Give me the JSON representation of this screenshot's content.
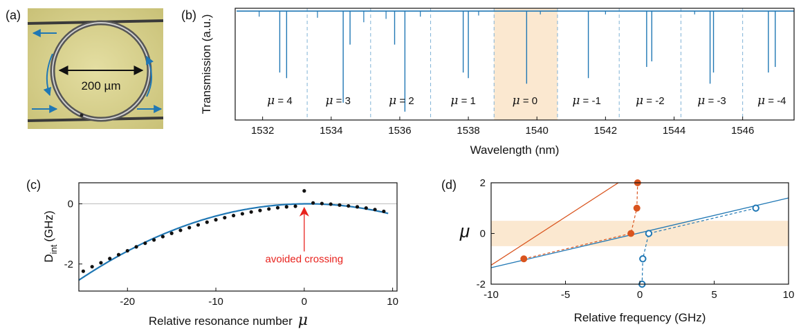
{
  "panel_labels": [
    "(a)",
    "(b)",
    "(c)",
    "(d)"
  ],
  "colors": {
    "blue": "#1f77b4",
    "red": "#d9541e",
    "band": "#fbe8d0",
    "annotation": "#e8221d",
    "black": "#111111",
    "photo_bg": "#d6cf8a"
  },
  "photo": {
    "dimension_label": "200 µm"
  },
  "chart_data": [
    {
      "panel": "(b)",
      "type": "line",
      "xlabel": "Wavelength (nm)",
      "ylabel": "Transmission (a.u.)",
      "xlim": [
        1531.2,
        1547.5
      ],
      "ylim": [
        0,
        1
      ],
      "xticks": [
        1532,
        1534,
        1536,
        1538,
        1540,
        1542,
        1544,
        1546
      ],
      "xtick_labels": [
        "1532",
        "1534",
        "1536",
        "1538",
        "1540",
        "1542",
        "1544",
        "1546"
      ],
      "highlight_band": [
        1538.75,
        1540.6
      ],
      "fsr_boundaries": [
        1533.3,
        1535.15,
        1536.9,
        1538.75,
        1540.6,
        1542.4,
        1544.2,
        1546.0
      ],
      "mode_labels": [
        "4",
        "3",
        "2",
        "1",
        "0",
        "-1",
        "-2",
        "-3",
        "-4"
      ],
      "mode_label_x": [
        1532.5,
        1534.2,
        1536.05,
        1537.85,
        1539.65,
        1541.45,
        1543.3,
        1545.1,
        1546.85
      ],
      "mode_symbol": "μ",
      "dips": [
        {
          "x": 1532.5,
          "depth": 0.55
        },
        {
          "x": 1532.7,
          "depth": 0.6
        },
        {
          "x": 1534.35,
          "depth": 0.82
        },
        {
          "x": 1534.55,
          "depth": 0.3
        },
        {
          "x": 1535.85,
          "depth": 0.3
        },
        {
          "x": 1536.15,
          "depth": 0.9
        },
        {
          "x": 1537.85,
          "depth": 0.55
        },
        {
          "x": 1538.0,
          "depth": 0.6
        },
        {
          "x": 1539.7,
          "depth": 0.65
        },
        {
          "x": 1541.5,
          "depth": 0.6
        },
        {
          "x": 1543.2,
          "depth": 0.5
        },
        {
          "x": 1543.35,
          "depth": 0.45
        },
        {
          "x": 1545.05,
          "depth": 0.65
        },
        {
          "x": 1545.15,
          "depth": 0.55
        },
        {
          "x": 1546.75,
          "depth": 0.55
        },
        {
          "x": 1546.95,
          "depth": 0.5
        }
      ],
      "minor_dips": [
        {
          "x": 1531.9,
          "depth": 0.05
        },
        {
          "x": 1533.6,
          "depth": 0.06
        },
        {
          "x": 1534.95,
          "depth": 0.1
        },
        {
          "x": 1535.6,
          "depth": 0.07
        },
        {
          "x": 1536.6,
          "depth": 0.05
        },
        {
          "x": 1538.3,
          "depth": 0.04
        },
        {
          "x": 1540.1,
          "depth": 0.03
        },
        {
          "x": 1542.0,
          "depth": 0.03
        },
        {
          "x": 1544.6,
          "depth": 0.03
        }
      ]
    },
    {
      "panel": "(c)",
      "type": "scatter",
      "xlabel": "Relative resonance number",
      "xlabel_symbol": "μ",
      "ylabel_main": "D",
      "ylabel_sub": "int",
      "ylabel_unit": "(GHz)",
      "xlim": [
        -25.5,
        10.5
      ],
      "ylim": [
        -2.9,
        0.7
      ],
      "xticks": [
        -20,
        -10,
        0,
        10
      ],
      "xtick_labels": [
        "-20",
        "-10",
        "0",
        "10"
      ],
      "yticks": [
        -2,
        0
      ],
      "ytick_labels": [
        "-2",
        "0"
      ],
      "grid_zero_line": true,
      "fit_curve_coeffs": [
        -0.0038,
        0.0026,
        0.0
      ],
      "points": [
        {
          "x": -25,
          "y": -2.24
        },
        {
          "x": -24,
          "y": -2.09
        },
        {
          "x": -23,
          "y": -1.96
        },
        {
          "x": -22,
          "y": -1.82
        },
        {
          "x": -21,
          "y": -1.69
        },
        {
          "x": -20,
          "y": -1.56
        },
        {
          "x": -19,
          "y": -1.43
        },
        {
          "x": -18,
          "y": -1.31
        },
        {
          "x": -17,
          "y": -1.2
        },
        {
          "x": -16,
          "y": -1.09
        },
        {
          "x": -15,
          "y": -0.98
        },
        {
          "x": -14,
          "y": -0.88
        },
        {
          "x": -13,
          "y": -0.79
        },
        {
          "x": -12,
          "y": -0.7
        },
        {
          "x": -11,
          "y": -0.61
        },
        {
          "x": -10,
          "y": -0.53
        },
        {
          "x": -9,
          "y": -0.46
        },
        {
          "x": -8,
          "y": -0.39
        },
        {
          "x": -7,
          "y": -0.33
        },
        {
          "x": -6,
          "y": -0.27
        },
        {
          "x": -5,
          "y": -0.22
        },
        {
          "x": -4,
          "y": -0.17
        },
        {
          "x": -3,
          "y": -0.13
        },
        {
          "x": -2,
          "y": -0.1
        },
        {
          "x": -1,
          "y": -0.08
        },
        {
          "x": 0,
          "y": 0.43
        },
        {
          "x": 1,
          "y": 0.03
        },
        {
          "x": 2,
          "y": 0.01
        },
        {
          "x": 3,
          "y": -0.01
        },
        {
          "x": 4,
          "y": -0.04
        },
        {
          "x": 5,
          "y": -0.07
        },
        {
          "x": 6,
          "y": -0.1
        },
        {
          "x": 7,
          "y": -0.14
        },
        {
          "x": 8,
          "y": -0.19
        },
        {
          "x": 9,
          "y": -0.25
        }
      ],
      "annotation": {
        "text": "avoided crossing",
        "arrow_x": 0,
        "arrow_tip_y": -0.1,
        "text_y": -1.95
      }
    },
    {
      "panel": "(d)",
      "type": "scatter",
      "xlabel": "Relative frequency (GHz)",
      "ylabel": "μ",
      "xlim": [
        -10,
        10
      ],
      "ylim": [
        -2,
        2
      ],
      "xticks": [
        -10,
        -5,
        0,
        5,
        10
      ],
      "xtick_labels": [
        "-10",
        "-5",
        "0",
        "5",
        "10"
      ],
      "yticks": [
        -2,
        0,
        2
      ],
      "ytick_labels": [
        "-2",
        "0",
        "2"
      ],
      "highlight_band": [
        -0.5,
        0.5
      ],
      "series": [
        {
          "marker": "filled",
          "color": "#d9541e",
          "points": [
            {
              "x": -7.8,
              "y": -1
            },
            {
              "x": -0.6,
              "y": 0
            },
            {
              "x": -0.2,
              "y": 1
            },
            {
              "x": -0.15,
              "y": 2
            }
          ],
          "line": {
            "from": [
              -10,
              -1.25
            ],
            "to": [
              0,
              2.55
            ]
          }
        },
        {
          "marker": "open",
          "color": "#1f77b4",
          "points": [
            {
              "x": 7.8,
              "y": 1
            },
            {
              "x": 0.6,
              "y": 0
            },
            {
              "x": 0.2,
              "y": -1
            },
            {
              "x": 0.15,
              "y": -2
            }
          ],
          "line": {
            "from": [
              -10,
              -1.35
            ],
            "to": [
              10,
              1.4
            ]
          }
        }
      ]
    }
  ]
}
